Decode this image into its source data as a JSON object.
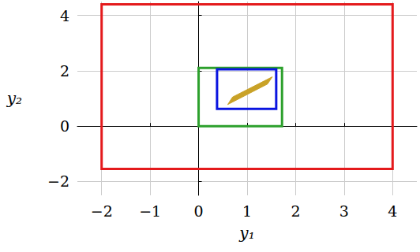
{
  "chart_data": {
    "type": "polygon",
    "xlabel": "y₁",
    "ylabel": "y₂",
    "xlim": [
      -2.5,
      4.5
    ],
    "ylim": [
      -2.5,
      4.5
    ],
    "xticks": [
      {
        "value": -2,
        "label": "−2"
      },
      {
        "value": -1,
        "label": "−1"
      },
      0,
      1,
      2,
      3,
      4
    ],
    "yticks": [
      {
        "value": -2,
        "label": "−2"
      },
      0,
      2,
      4
    ],
    "grid": true,
    "series": [
      {
        "type": "outline",
        "color": "#e41a1c",
        "x": [
          -2,
          4,
          4,
          -2
        ],
        "y": [
          -1.55,
          -1.55,
          4.4,
          4.4
        ]
      },
      {
        "type": "outline",
        "color": "#2ca02c",
        "x": [
          0,
          1.72,
          1.72,
          0
        ],
        "y": [
          0,
          0,
          2.1,
          2.1
        ]
      },
      {
        "type": "outline",
        "color": "#0a14e0",
        "x": [
          0.38,
          1.6,
          1.6,
          0.38
        ],
        "y": [
          0.62,
          0.62,
          2.05,
          2.05
        ]
      },
      {
        "type": "filled",
        "color": "#c9a227",
        "x": [
          0.6,
          1.42,
          1.52,
          0.7
        ],
        "y": [
          0.78,
          1.52,
          1.78,
          1.05
        ]
      }
    ]
  }
}
